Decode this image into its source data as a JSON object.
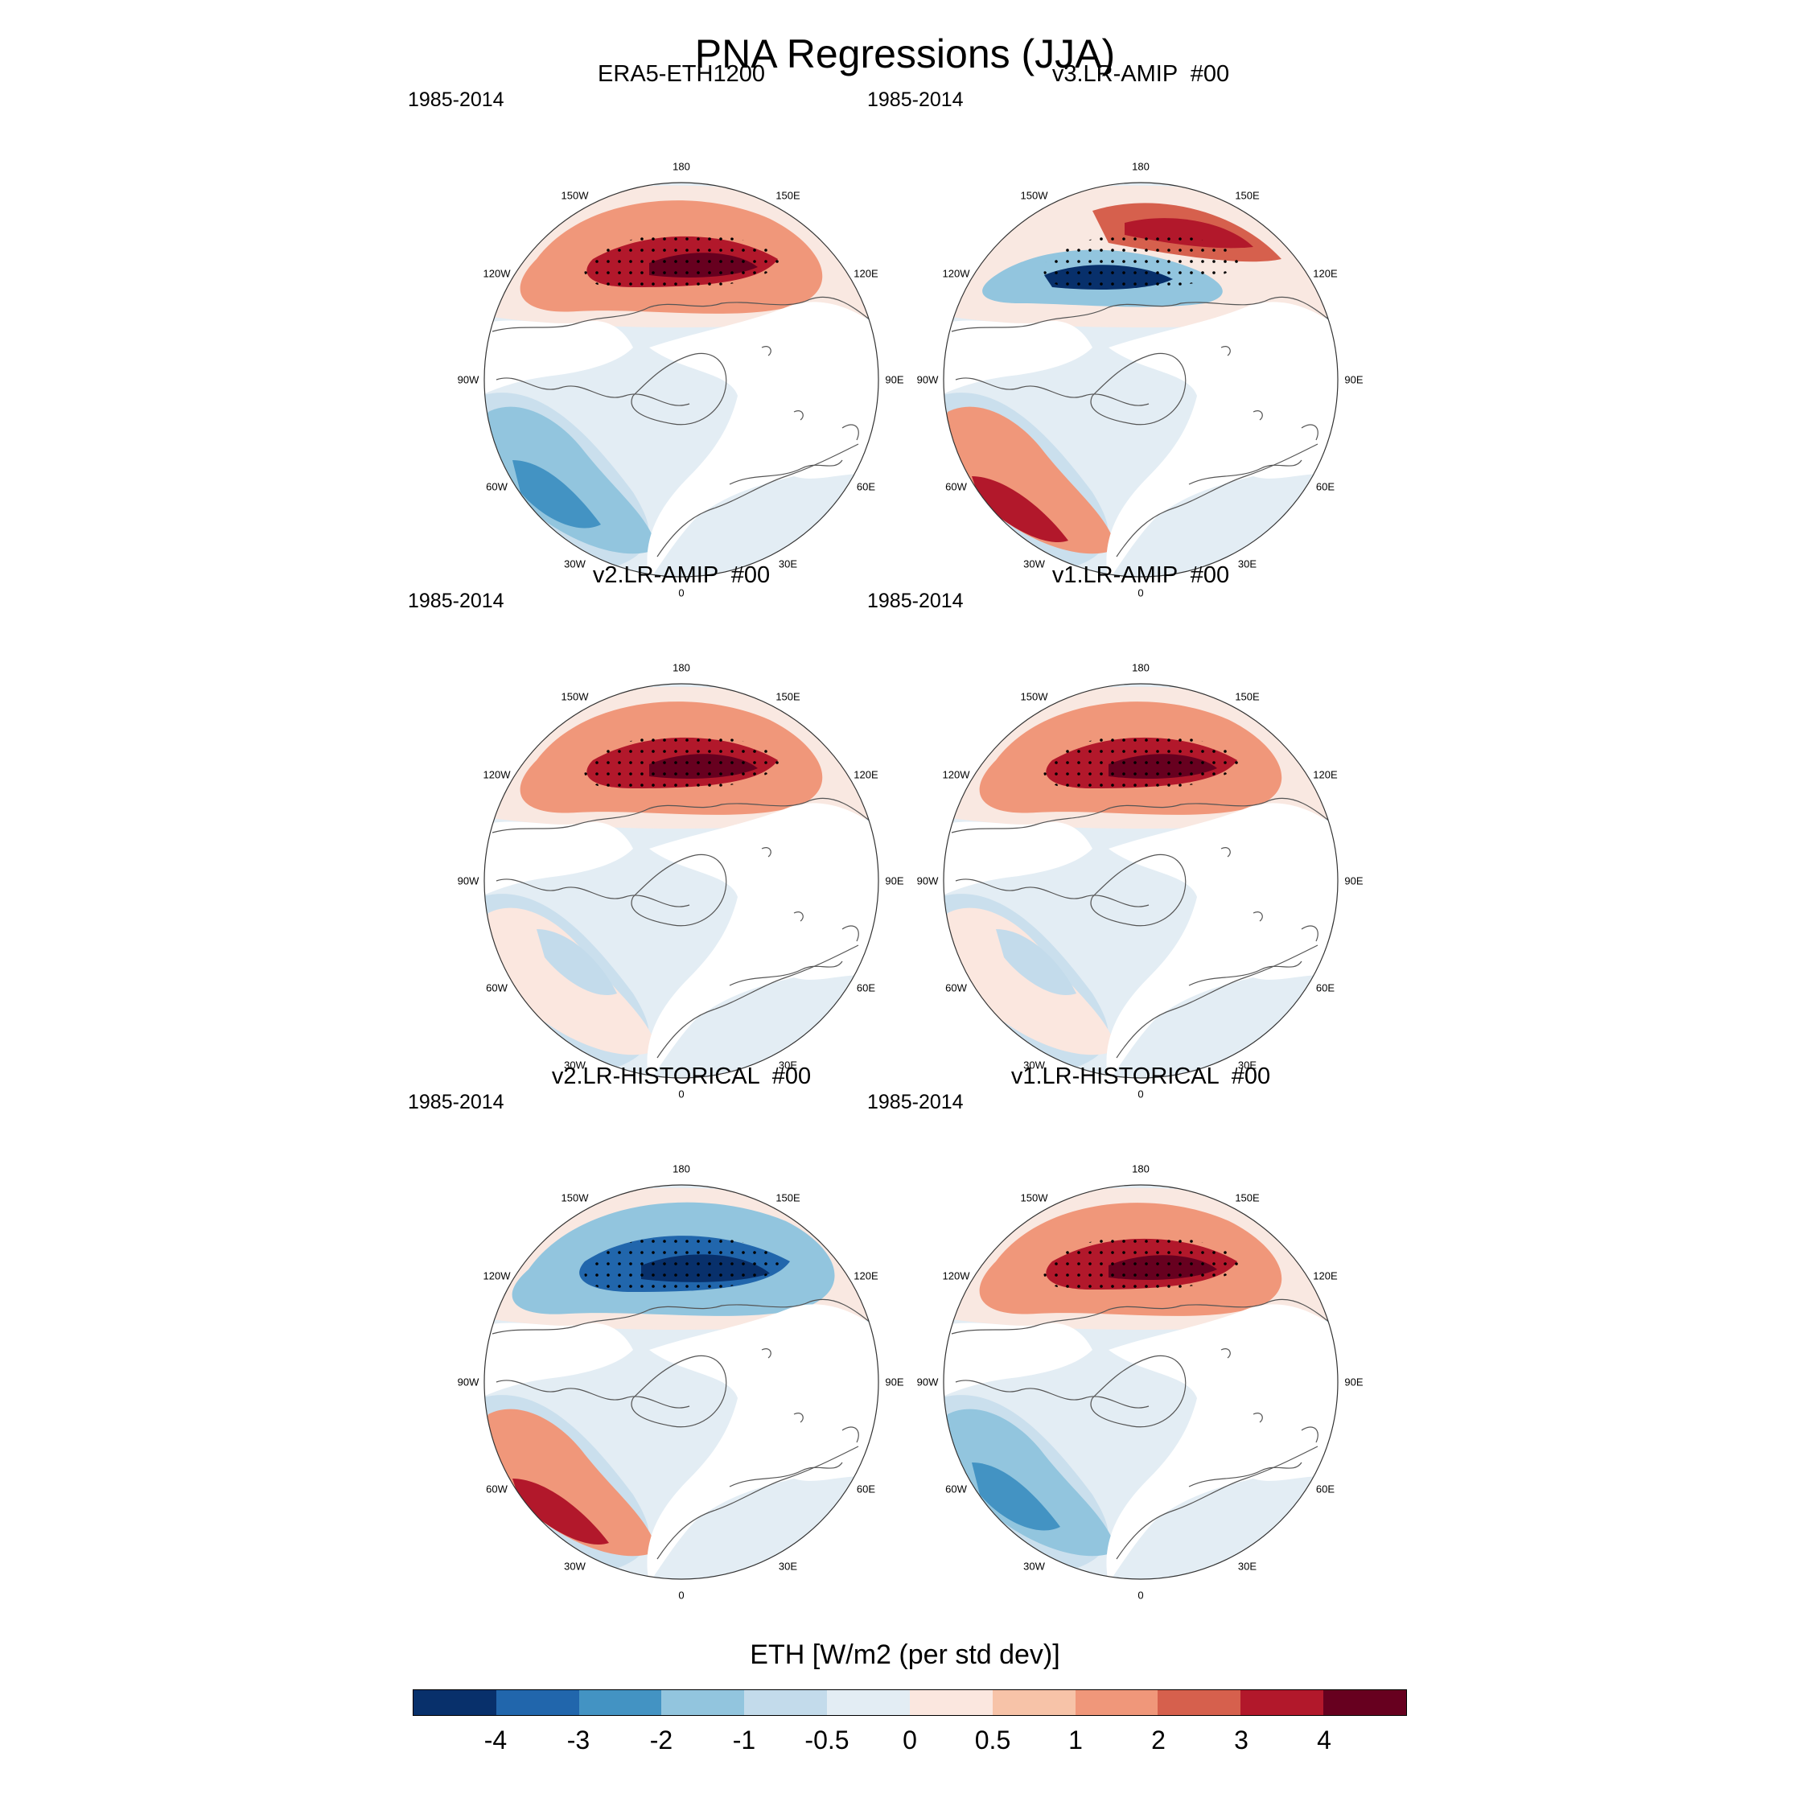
{
  "title": "PNA Regressions (JJA)",
  "period": "1985-2014",
  "longitude_labels": [
    "180",
    "150E",
    "120E",
    "90E",
    "60E",
    "30E",
    "0",
    "30W",
    "60W",
    "90W",
    "120W",
    "150W"
  ],
  "panels": [
    {
      "title": "ERA5-ETH1200",
      "period": "1985-2014",
      "pacific_anomaly": "positive",
      "atlantic_anomaly": "negative"
    },
    {
      "title": "v3.LR-AMIP  #00",
      "period": "1985-2014",
      "pacific_anomaly": "dipole",
      "atlantic_anomaly": "positive"
    },
    {
      "title": "v2.LR-AMIP  #00",
      "period": "1985-2014",
      "pacific_anomaly": "positive",
      "atlantic_anomaly": "weak"
    },
    {
      "title": "v1.LR-AMIP  #00",
      "period": "1985-2014",
      "pacific_anomaly": "positive",
      "atlantic_anomaly": "weak"
    },
    {
      "title": "v2.LR-HISTORICAL  #00",
      "period": "1985-2014",
      "pacific_anomaly": "negative",
      "atlantic_anomaly": "positive"
    },
    {
      "title": "v1.LR-HISTORICAL  #00",
      "period": "1985-2014",
      "pacific_anomaly": "positive",
      "atlantic_anomaly": "negative"
    }
  ],
  "colorbar": {
    "title": "ETH [W/m2 (per std dev)]",
    "colors": [
      "#08306b",
      "#2166ac",
      "#4393c3",
      "#92c5de",
      "#c3dbeb",
      "#e3edf4",
      "#fbe7df",
      "#f7c3a8",
      "#f0977a",
      "#d6604d",
      "#b2182b",
      "#67001f"
    ],
    "ticks": [
      "-4",
      "-3",
      "-2",
      "-1",
      "-0.5",
      "0",
      "0.5",
      "1",
      "2",
      "3",
      "4"
    ]
  }
}
